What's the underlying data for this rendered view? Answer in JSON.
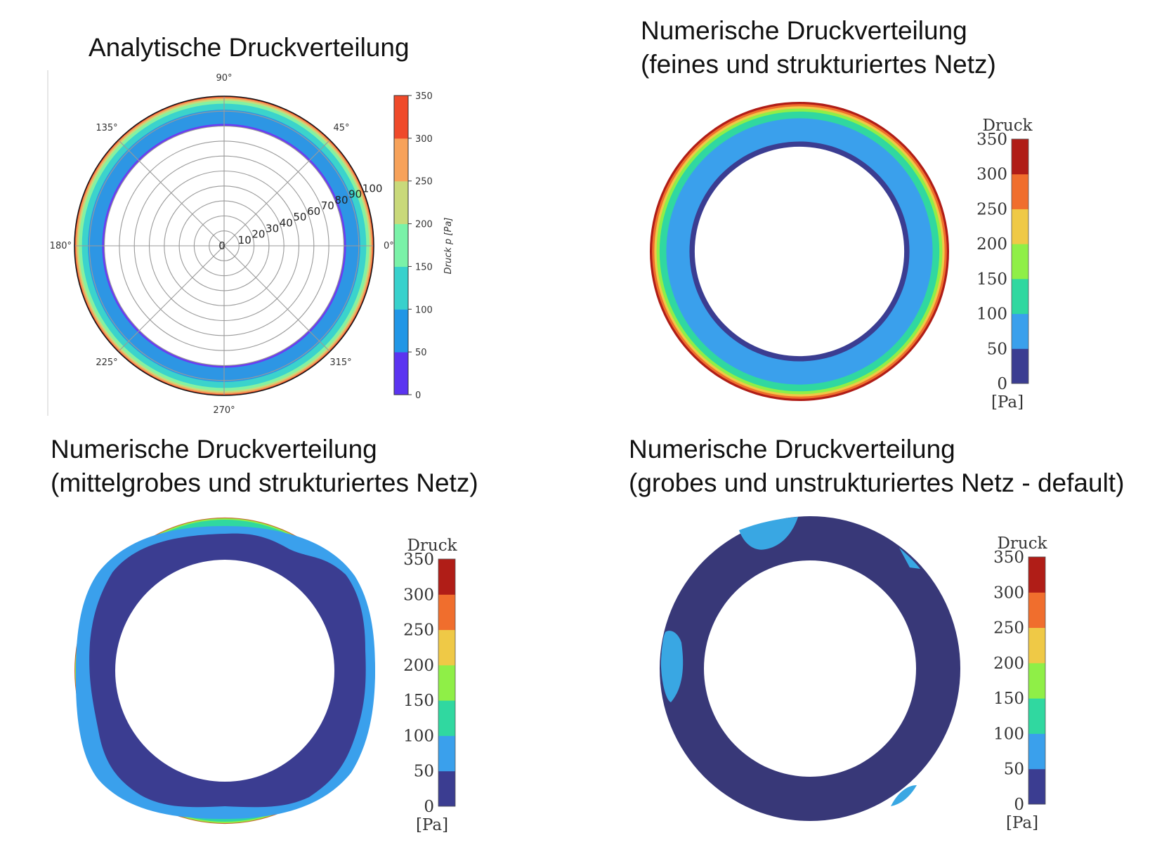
{
  "titles": {
    "analytic": "Analytische Druckverteilung",
    "fine_line1": "Numerische Druckverteilung",
    "fine_line2": "(feines und strukturiertes Netz)",
    "medium_line1": "Numerische Druckverteilung",
    "medium_line2": "(mittelgrobes und strukturiertes Netz)",
    "coarse_line1": "Numerische Druckverteilung",
    "coarse_line2": "(grobes und unstrukturiertes Netz - default)"
  },
  "chart_data": [
    {
      "type": "heatmap",
      "plot": "polar-contour",
      "title": "Analytische Druckverteilung",
      "angle_labels": [
        "90°",
        "45°",
        "0°",
        "315°",
        "270°",
        "225°",
        "180°",
        "135°"
      ],
      "radial_ticks": [
        "0",
        "10",
        "20",
        "30",
        "40",
        "50",
        "60",
        "70",
        "80",
        "90",
        "100"
      ],
      "colorbar": {
        "label": "Druck p [Pa]",
        "ticks": [
          "0",
          "50",
          "100",
          "150",
          "200",
          "250",
          "300",
          "350"
        ],
        "levels": [
          0,
          50,
          100,
          150,
          200,
          250,
          300,
          350
        ],
        "colors": [
          "#5b34f0",
          "#2196e6",
          "#38d1cc",
          "#7af2a8",
          "#c9d97a",
          "#f7a25a",
          "#ef4a2a"
        ]
      },
      "bands": [
        {
          "r_inner": 80,
          "r_outer": 81.5,
          "color": "#6a3cf2"
        },
        {
          "r_inner": 81.5,
          "r_outer": 91,
          "color": "#2d96e4"
        },
        {
          "r_inner": 91,
          "r_outer": 95,
          "color": "#3bd3cc"
        },
        {
          "r_inner": 95,
          "r_outer": 97,
          "color": "#84f2a2"
        },
        {
          "r_inner": 97,
          "r_outer": 98.2,
          "color": "#c8da7a"
        },
        {
          "r_inner": 98.2,
          "r_outer": 99.2,
          "color": "#f5a25c"
        },
        {
          "r_inner": 99.2,
          "r_outer": 100,
          "color": "#ea4d2c"
        }
      ],
      "r_range": [
        0,
        100
      ]
    },
    {
      "type": "heatmap",
      "plot": "contour",
      "title": "Numerische Druckverteilung (feines und strukturiertes Netz)",
      "colorbar": {
        "title": "Druck",
        "unit": "[Pa]",
        "ticks": [
          "0",
          "50",
          "100",
          "150",
          "200",
          "250",
          "300",
          "350"
        ],
        "colors": [
          "#3b3d91",
          "#3aa0ec",
          "#30d8a0",
          "#8fef47",
          "#efc946",
          "#f06e2d",
          "#b01d17"
        ]
      },
      "bands": [
        {
          "r_inner": 140,
          "r_outer": 147,
          "color": "#3b3d91"
        },
        {
          "r_inner": 147,
          "r_outer": 178,
          "color": "#3aa0ec"
        },
        {
          "r_inner": 178,
          "r_outer": 187,
          "color": "#30d8a0"
        },
        {
          "r_inner": 187,
          "r_outer": 191,
          "color": "#8fef47"
        },
        {
          "r_inner": 191,
          "r_outer": 194,
          "color": "#efc946"
        },
        {
          "r_inner": 194,
          "r_outer": 197,
          "color": "#f06e2d"
        },
        {
          "r_inner": 197,
          "r_outer": 200,
          "color": "#b01d17"
        }
      ]
    },
    {
      "type": "heatmap",
      "plot": "contour",
      "title": "Numerische Druckverteilung (mittelgrobes und strukturiertes Netz)",
      "colorbar": {
        "title": "Druck",
        "unit": "[Pa]",
        "ticks": [
          "0",
          "50",
          "100",
          "150",
          "200",
          "250",
          "300",
          "350"
        ],
        "colors": [
          "#3b3d91",
          "#3aa0ec",
          "#30d8a0",
          "#8fef47",
          "#efc946",
          "#f06e2d",
          "#b01d17"
        ]
      }
    },
    {
      "type": "heatmap",
      "plot": "contour",
      "title": "Numerische Druckverteilung (grobes und unstrukturiertes Netz - default)",
      "colorbar": {
        "title": "Druck",
        "unit": "[Pa]",
        "ticks": [
          "0",
          "50",
          "100",
          "150",
          "200",
          "250",
          "300",
          "350"
        ],
        "colors": [
          "#3b3d91",
          "#3aa0ec",
          "#30d8a0",
          "#8fef47",
          "#efc946",
          "#f06e2d",
          "#b01d17"
        ]
      }
    }
  ]
}
